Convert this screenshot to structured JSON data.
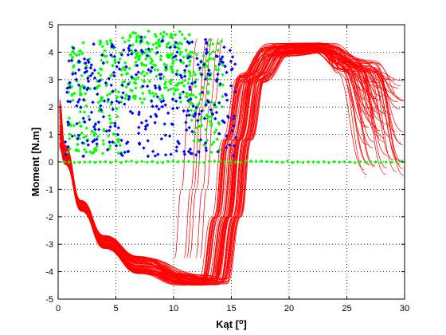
{
  "chart_data": {
    "type": "scatter",
    "title": "",
    "xlabel": "Kąt [",
    "xlabel_unit": "o",
    "xlabel_close": "]",
    "ylabel": "Moment [N.m]",
    "xlim": [
      0,
      30
    ],
    "ylim": [
      -5,
      5
    ],
    "xticks": [
      0,
      5,
      10,
      15,
      20,
      25,
      30
    ],
    "yticks": [
      -5,
      -4,
      -3,
      -2,
      -1,
      0,
      1,
      2,
      3,
      4,
      5
    ],
    "grid": "dotted",
    "legend": "none",
    "colors": {
      "red": "#ff0000",
      "green": "#00ff00",
      "blue": "#0000ff"
    },
    "series": [
      {
        "color": "#ff0000",
        "style": "lines",
        "description_values": [
          {
            "x": 0.2,
            "y": 2.0
          },
          {
            "x": 1.0,
            "y": 0.3
          },
          {
            "x": 2.0,
            "y": -1.2
          },
          {
            "x": 4.0,
            "y": -2.8
          },
          {
            "x": 7.0,
            "y": -3.8
          },
          {
            "x": 10.0,
            "y": -4.5
          },
          {
            "x": 12.0,
            "y": -4.6
          },
          {
            "x": 13.5,
            "y": -3.8
          },
          {
            "x": 14.5,
            "y": -2.0
          },
          {
            "x": 15.5,
            "y": 0.5
          },
          {
            "x": 16.5,
            "y": 2.8
          },
          {
            "x": 18.0,
            "y": 3.8
          },
          {
            "x": 21.0,
            "y": 4.3
          },
          {
            "x": 24.0,
            "y": 4.0
          },
          {
            "x": 27.0,
            "y": 3.5
          },
          {
            "x": 29.0,
            "y": 2.0
          },
          {
            "x": 30.0,
            "y": -0.5
          }
        ]
      },
      {
        "color": "#00ff00",
        "style": "markers",
        "region": {
          "x": [
            0.5,
            14.5
          ],
          "y": [
            0,
            4.9
          ]
        },
        "baseline_y": 0,
        "baseline_x": [
          15,
          30
        ]
      },
      {
        "color": "#0000ff",
        "style": "markers",
        "region": {
          "x": [
            0.5,
            15.5
          ],
          "y": [
            0,
            4.8
          ]
        }
      }
    ]
  }
}
